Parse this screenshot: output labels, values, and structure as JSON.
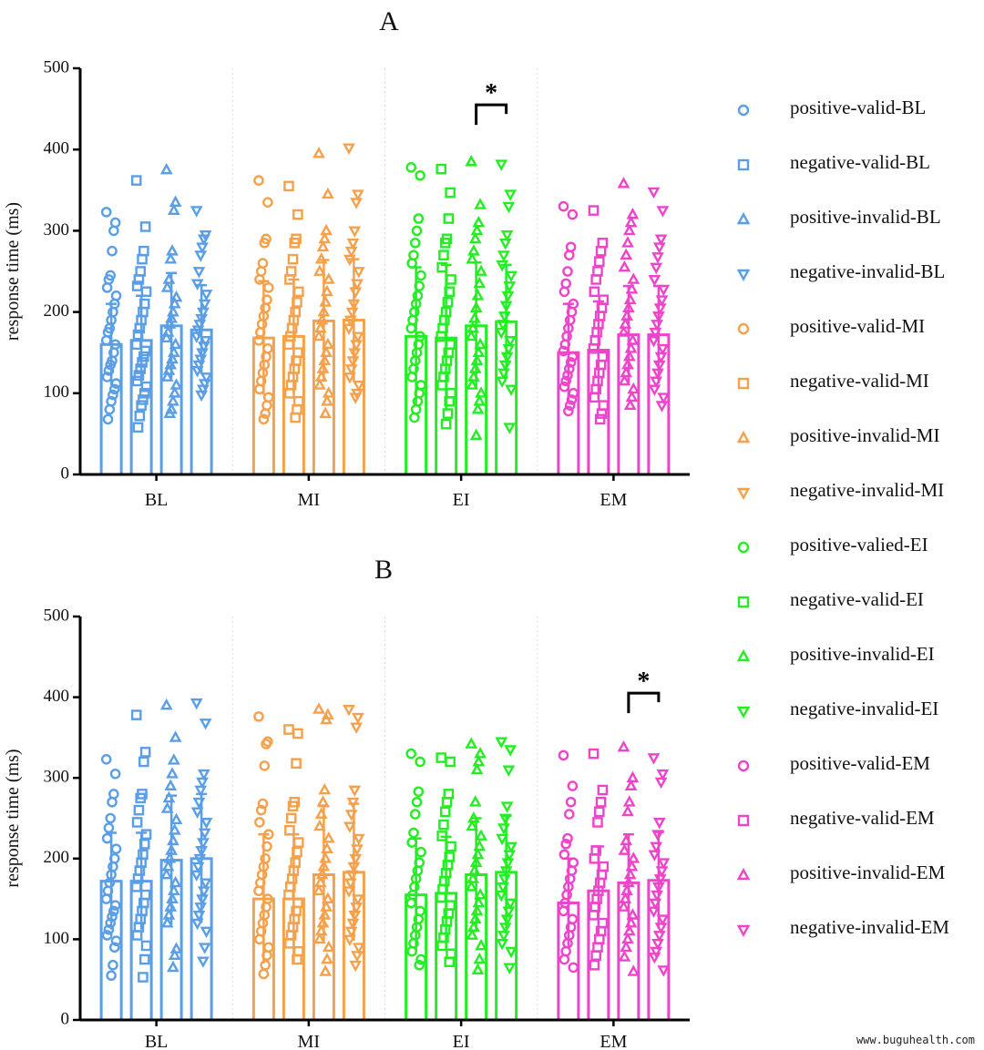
{
  "chart_data": [
    {
      "type": "bar",
      "title": "A",
      "ylabel": "response time (ms)",
      "ylim": [
        0,
        500
      ],
      "yticks": [
        0,
        100,
        200,
        300,
        400,
        500
      ],
      "groups": [
        "BL",
        "MI",
        "EI",
        "EM"
      ],
      "series_per_group": [
        "positive-valid",
        "negative-valid",
        "positive-invalid",
        "negative-invalid"
      ],
      "means": [
        [
          160,
          165,
          183,
          178
        ],
        [
          168,
          170,
          189,
          190
        ],
        [
          170,
          168,
          183,
          188
        ],
        [
          150,
          153,
          172,
          172
        ]
      ],
      "sd": [
        [
          50,
          55,
          65,
          55
        ],
        [
          70,
          70,
          75,
          75
        ],
        [
          85,
          90,
          78,
          70
        ],
        [
          60,
          60,
          60,
          60
        ]
      ],
      "points": [
        [
          [
            323,
            310,
            300,
            275,
            245,
            240,
            230,
            220,
            210,
            200,
            190,
            180,
            175,
            165,
            160,
            150,
            140,
            135,
            128,
            120,
            112,
            105,
            98,
            90,
            80,
            68
          ],
          [
            362,
            305,
            275,
            265,
            250,
            240,
            232,
            225,
            210,
            200,
            190,
            180,
            172,
            160,
            152,
            145,
            138,
            130,
            122,
            115,
            108,
            100,
            92,
            85,
            72,
            58
          ],
          [
            375,
            335,
            325,
            275,
            265,
            240,
            230,
            218,
            210,
            200,
            192,
            185,
            175,
            168,
            160,
            150,
            142,
            135,
            128,
            120,
            110,
            100,
            90,
            80,
            75
          ],
          [
            325,
            295,
            290,
            280,
            270,
            250,
            235,
            222,
            210,
            200,
            192,
            185,
            178,
            170,
            165,
            158,
            150,
            142,
            135,
            128,
            120,
            112,
            105,
            98
          ]
        ],
        [
          [
            362,
            335,
            290,
            285,
            260,
            250,
            240,
            230,
            215,
            205,
            195,
            185,
            175,
            165,
            155,
            145,
            135,
            125,
            115,
            105,
            95,
            85,
            75,
            68
          ],
          [
            355,
            320,
            290,
            285,
            265,
            250,
            240,
            225,
            212,
            200,
            190,
            180,
            170,
            160,
            150,
            140,
            130,
            120,
            110,
            100,
            90,
            80,
            70
          ],
          [
            395,
            345,
            300,
            290,
            280,
            265,
            250,
            240,
            225,
            212,
            200,
            190,
            180,
            170,
            160,
            150,
            140,
            130,
            120,
            110,
            100,
            90,
            75
          ],
          [
            402,
            345,
            335,
            300,
            285,
            275,
            265,
            250,
            235,
            225,
            210,
            200,
            190,
            180,
            170,
            160,
            150,
            140,
            130,
            120,
            110,
            100,
            95
          ]
        ],
        [
          [
            378,
            368,
            315,
            300,
            285,
            270,
            260,
            245,
            232,
            220,
            210,
            200,
            190,
            180,
            170,
            160,
            150,
            140,
            130,
            120,
            110,
            100,
            90,
            80,
            70
          ],
          [
            376,
            347,
            315,
            290,
            285,
            270,
            255,
            240,
            225,
            212,
            200,
            190,
            180,
            170,
            160,
            150,
            140,
            130,
            120,
            110,
            100,
            90,
            75,
            62
          ],
          [
            385,
            332,
            310,
            300,
            290,
            275,
            265,
            250,
            235,
            220,
            205,
            192,
            180,
            170,
            160,
            150,
            140,
            130,
            120,
            110,
            100,
            90,
            80,
            48
          ],
          [
            382,
            345,
            330,
            295,
            285,
            270,
            258,
            245,
            232,
            220,
            208,
            195,
            185,
            175,
            165,
            155,
            145,
            135,
            125,
            115,
            105,
            58
          ]
        ],
        [
          [
            330,
            320,
            280,
            270,
            250,
            235,
            225,
            210,
            200,
            190,
            180,
            170,
            160,
            152,
            145,
            138,
            130,
            122,
            115,
            108,
            100,
            92,
            85,
            78
          ],
          [
            325,
            285,
            275,
            262,
            250,
            240,
            225,
            215,
            205,
            195,
            185,
            175,
            165,
            155,
            145,
            135,
            125,
            115,
            105,
            95,
            85,
            75,
            68
          ],
          [
            358,
            320,
            310,
            300,
            285,
            270,
            255,
            240,
            228,
            215,
            205,
            195,
            185,
            175,
            165,
            155,
            145,
            135,
            125,
            115,
            105,
            95,
            85
          ],
          [
            348,
            325,
            290,
            280,
            268,
            255,
            240,
            228,
            215,
            205,
            195,
            185,
            175,
            165,
            155,
            145,
            135,
            125,
            115,
            105,
            95,
            85
          ]
        ]
      ],
      "significance": {
        "group": "EI",
        "between": [
          "positive-invalid",
          "negative-invalid"
        ],
        "label": "*"
      }
    },
    {
      "type": "bar",
      "title": "B",
      "ylabel": "response time (ms)",
      "ylim": [
        0,
        500
      ],
      "yticks": [
        0,
        100,
        200,
        300,
        400,
        500
      ],
      "groups": [
        "BL",
        "MI",
        "EI",
        "EM"
      ],
      "series_per_group": [
        "positive-valid",
        "negative-valid",
        "positive-invalid",
        "negative-invalid"
      ],
      "means": [
        [
          172,
          172,
          198,
          200
        ],
        [
          150,
          150,
          180,
          183
        ],
        [
          155,
          157,
          180,
          183
        ],
        [
          145,
          160,
          170,
          173
        ]
      ],
      "sd": [
        [
          60,
          60,
          80,
          80
        ],
        [
          80,
          80,
          85,
          85
        ],
        [
          70,
          70,
          70,
          70
        ],
        [
          55,
          55,
          60,
          60
        ]
      ],
      "points": [
        [
          [
            323,
            305,
            280,
            270,
            250,
            238,
            225,
            212,
            200,
            190,
            180,
            170,
            160,
            150,
            142,
            135,
            128,
            120,
            112,
            105,
            98,
            90,
            68,
            55
          ],
          [
            378,
            332,
            320,
            280,
            275,
            260,
            245,
            230,
            218,
            205,
            195,
            185,
            175,
            165,
            155,
            145,
            135,
            125,
            115,
            105,
            92,
            75,
            53
          ],
          [
            390,
            350,
            322,
            305,
            290,
            275,
            262,
            248,
            235,
            222,
            210,
            200,
            190,
            180,
            170,
            160,
            150,
            140,
            130,
            120,
            88,
            80,
            65
          ],
          [
            393,
            368,
            305,
            295,
            285,
            270,
            258,
            245,
            232,
            220,
            210,
            200,
            190,
            180,
            170,
            160,
            150,
            140,
            130,
            120,
            110,
            90,
            73
          ]
        ],
        [
          [
            376,
            345,
            342,
            315,
            268,
            260,
            245,
            230,
            215,
            200,
            190,
            180,
            170,
            160,
            150,
            140,
            130,
            120,
            110,
            100,
            90,
            80,
            68,
            57
          ],
          [
            360,
            355,
            318,
            270,
            265,
            250,
            235,
            220,
            208,
            195,
            185,
            175,
            165,
            155,
            145,
            135,
            125,
            115,
            105,
            95,
            85,
            75
          ],
          [
            385,
            378,
            372,
            285,
            270,
            255,
            240,
            225,
            212,
            200,
            190,
            180,
            170,
            160,
            150,
            140,
            130,
            120,
            110,
            100,
            90,
            75,
            60
          ],
          [
            385,
            375,
            363,
            285,
            270,
            255,
            240,
            225,
            212,
            200,
            190,
            180,
            170,
            160,
            150,
            140,
            130,
            120,
            110,
            100,
            90,
            80,
            68
          ]
        ],
        [
          [
            330,
            320,
            283,
            270,
            255,
            232,
            220,
            208,
            195,
            185,
            175,
            165,
            155,
            145,
            135,
            125,
            115,
            105,
            95,
            85,
            75,
            68
          ],
          [
            325,
            320,
            280,
            270,
            258,
            242,
            228,
            215,
            202,
            192,
            182,
            172,
            162,
            152,
            142,
            132,
            122,
            112,
            102,
            92,
            82,
            72
          ],
          [
            342,
            330,
            320,
            310,
            270,
            250,
            240,
            228,
            215,
            205,
            195,
            185,
            175,
            165,
            155,
            145,
            135,
            125,
            115,
            105,
            92,
            75,
            62
          ],
          [
            345,
            335,
            310,
            265,
            250,
            238,
            225,
            215,
            205,
            195,
            185,
            175,
            165,
            155,
            145,
            135,
            125,
            115,
            105,
            95,
            85,
            65
          ]
        ],
        [
          [
            328,
            290,
            270,
            255,
            225,
            218,
            205,
            195,
            185,
            175,
            165,
            155,
            145,
            135,
            125,
            115,
            105,
            95,
            85,
            75,
            65
          ],
          [
            330,
            285,
            270,
            258,
            245,
            210,
            200,
            190,
            180,
            170,
            160,
            150,
            140,
            130,
            120,
            110,
            100,
            90,
            80,
            68
          ],
          [
            338,
            300,
            290,
            270,
            258,
            222,
            210,
            200,
            190,
            180,
            170,
            160,
            150,
            140,
            130,
            120,
            110,
            100,
            90,
            78,
            60
          ],
          [
            325,
            305,
            295,
            245,
            230,
            215,
            205,
            195,
            185,
            175,
            165,
            155,
            145,
            135,
            125,
            115,
            105,
            95,
            85,
            78,
            62
          ]
        ]
      ],
      "significance": {
        "group": "EM",
        "between": [
          "positive-invalid",
          "negative-invalid"
        ],
        "label": "*"
      }
    }
  ],
  "group_colors": [
    "#5a9ee6",
    "#f5a04b",
    "#22ee22",
    "#ee44cc"
  ],
  "marker_shapes": [
    "circle",
    "square",
    "triangle-up",
    "triangle-down"
  ],
  "legend": [
    {
      "label": "positive-valid-BL",
      "color": "#5a9ee6",
      "shape": "circle"
    },
    {
      "label": "negative-valid-BL",
      "color": "#5a9ee6",
      "shape": "square"
    },
    {
      "label": "positive-invalid-BL",
      "color": "#5a9ee6",
      "shape": "triangle-up"
    },
    {
      "label": "negative-invalid-BL",
      "color": "#5a9ee6",
      "shape": "triangle-down"
    },
    {
      "label": "positive-valid-MI",
      "color": "#f5a04b",
      "shape": "circle"
    },
    {
      "label": "negative-valid-MI",
      "color": "#f5a04b",
      "shape": "square"
    },
    {
      "label": "positive-invalid-MI",
      "color": "#f5a04b",
      "shape": "triangle-up"
    },
    {
      "label": "negative-invalid-MI",
      "color": "#f5a04b",
      "shape": "triangle-down"
    },
    {
      "label": "positive-valied-EI",
      "color": "#22ee22",
      "shape": "circle"
    },
    {
      "label": "negative-valid-EI",
      "color": "#22ee22",
      "shape": "square"
    },
    {
      "label": "positive-invalid-EI",
      "color": "#22ee22",
      "shape": "triangle-up"
    },
    {
      "label": "negative-invalid-EI",
      "color": "#22ee22",
      "shape": "triangle-down"
    },
    {
      "label": "positive-valid-EM",
      "color": "#ee44cc",
      "shape": "circle"
    },
    {
      "label": "negative-valid-EM",
      "color": "#ee44cc",
      "shape": "square"
    },
    {
      "label": "positive-invalid-EM",
      "color": "#ee44cc",
      "shape": "triangle-up"
    },
    {
      "label": "negative-invalid-EM",
      "color": "#ee44cc",
      "shape": "triangle-down"
    }
  ],
  "watermark": "www.buguhealth.com"
}
